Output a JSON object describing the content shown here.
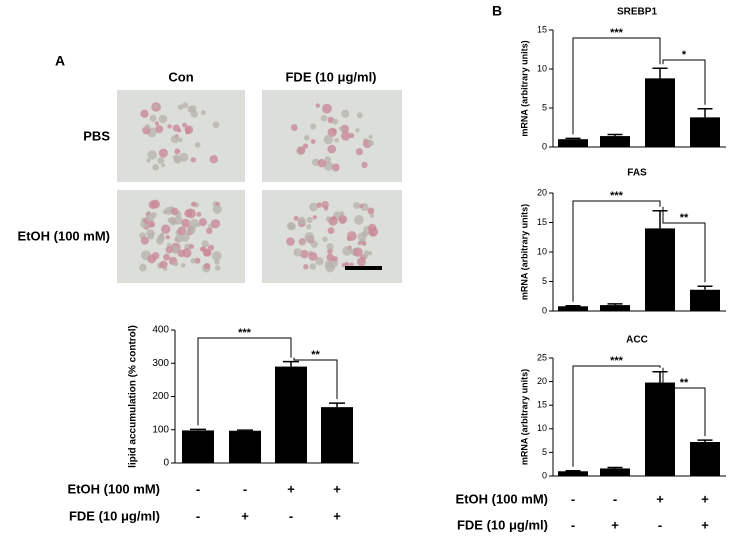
{
  "panel_a": {
    "label": "A",
    "columns": [
      "Con",
      "FDE (10 μg/ml)"
    ],
    "rows": [
      "PBS",
      "EtOH (100 mM)"
    ]
  },
  "panel_b": {
    "label": "B"
  },
  "chart_data": [
    {
      "type": "bar",
      "y_label": "lipid accumulation (% control)",
      "values": [
        98,
        97,
        290,
        168
      ],
      "errors": [
        3,
        2,
        15,
        12
      ],
      "color": "#000000",
      "ylim": [
        0,
        400
      ],
      "yticks": [
        0,
        100,
        200,
        300,
        400
      ],
      "annotations": [
        "***",
        "**"
      ],
      "treatments": [
        {
          "name": "EtOH (100 mM)",
          "signs": [
            "-",
            "-",
            "+",
            "+"
          ]
        },
        {
          "name": "FDE (10 μg/ml)",
          "signs": [
            "-",
            "+",
            "-",
            "+"
          ]
        }
      ]
    },
    {
      "type": "bar",
      "title": "SREBP1",
      "y_label": "mRNA (arbitrary units)",
      "values": [
        1,
        1.4,
        8.8,
        3.8
      ],
      "errors": [
        0.1,
        0.2,
        1.3,
        1.1
      ],
      "color": "#000000",
      "ylim": [
        0,
        15
      ],
      "yticks": [
        0,
        5,
        10,
        15
      ],
      "annotations": [
        "***",
        "*"
      ]
    },
    {
      "type": "bar",
      "title": "FAS",
      "y_label": "mRNA (arbitrary units)",
      "values": [
        0.8,
        1.0,
        14,
        3.6
      ],
      "errors": [
        0.1,
        0.2,
        3,
        0.6
      ],
      "color": "#000000",
      "ylim": [
        0,
        20
      ],
      "yticks": [
        0,
        5,
        10,
        15,
        20
      ],
      "annotations": [
        "***",
        "**"
      ]
    },
    {
      "type": "bar",
      "title": "ACC",
      "y_label": "mRNA (arbitrary units)",
      "values": [
        1,
        1.6,
        19.8,
        7.2
      ],
      "errors": [
        0.1,
        0.2,
        2.3,
        0.4
      ],
      "color": "#000000",
      "ylim": [
        0,
        25
      ],
      "yticks": [
        0,
        5,
        10,
        15,
        20,
        25
      ],
      "annotations": [
        "***",
        "**"
      ],
      "treatments": [
        {
          "name": "EtOH (100 mM)",
          "signs": [
            "-",
            "-",
            "+",
            "+"
          ]
        },
        {
          "name": "FDE (10 μg/ml)",
          "signs": [
            "-",
            "+",
            "-",
            "+"
          ]
        }
      ]
    }
  ]
}
